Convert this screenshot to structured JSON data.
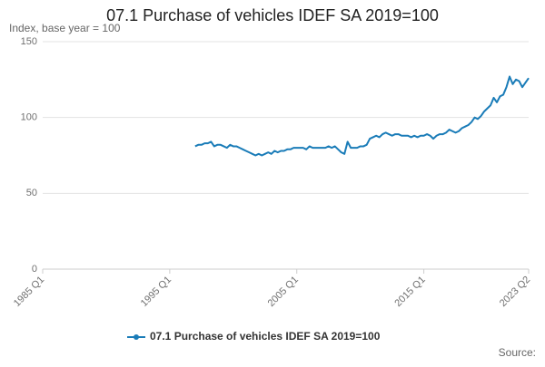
{
  "chart_data": {
    "type": "line",
    "title": "07.1 Purchase of vehicles IDEF SA 2019=100",
    "subtitle": "Index, base year = 100",
    "source": "Source:",
    "categories": [
      "1985 Q1",
      null,
      null,
      null,
      null,
      null,
      null,
      null,
      null,
      null,
      null,
      null,
      null,
      null,
      null,
      null,
      null,
      null,
      null,
      null,
      null,
      null,
      null,
      null,
      null,
      null,
      null,
      null,
      null,
      null,
      null,
      null,
      null,
      null,
      null,
      null,
      null,
      null,
      null,
      null,
      "1995 Q1",
      null,
      null,
      null,
      null,
      null,
      null,
      null,
      null,
      null,
      null,
      null,
      null,
      null,
      null,
      null,
      null,
      null,
      null,
      null,
      null,
      null,
      null,
      null,
      null,
      null,
      null,
      null,
      null,
      null,
      null,
      null,
      null,
      null,
      null,
      null,
      null,
      null,
      null,
      null,
      "2005 Q1",
      null,
      null,
      null,
      null,
      null,
      null,
      null,
      null,
      null,
      null,
      null,
      null,
      null,
      null,
      null,
      null,
      null,
      null,
      null,
      null,
      null,
      null,
      null,
      null,
      null,
      null,
      null,
      null,
      null,
      null,
      null,
      null,
      null,
      null,
      null,
      null,
      null,
      null,
      null,
      "2015 Q1",
      null,
      null,
      null,
      null,
      null,
      null,
      null,
      null,
      null,
      null,
      null,
      null,
      null,
      null,
      null,
      null,
      null,
      null,
      null,
      null,
      null,
      null,
      null,
      null,
      null,
      null,
      null,
      null,
      null,
      null,
      null,
      null,
      "2023 Q2"
    ],
    "series": [
      {
        "name": "07.1 Purchase of vehicles IDEF SA 2019=100",
        "color": "#1a7cb8",
        "values": [
          null,
          null,
          null,
          null,
          null,
          null,
          null,
          null,
          null,
          null,
          null,
          null,
          null,
          null,
          null,
          null,
          null,
          null,
          null,
          null,
          null,
          null,
          null,
          null,
          null,
          null,
          null,
          null,
          null,
          null,
          null,
          null,
          null,
          null,
          null,
          null,
          null,
          null,
          null,
          null,
          null,
          null,
          null,
          null,
          null,
          null,
          null,
          null,
          81,
          82,
          82,
          83,
          83,
          84,
          81,
          82,
          82,
          81,
          80,
          82,
          81,
          81,
          80,
          79,
          78,
          77,
          76,
          75,
          76,
          75,
          76,
          77,
          76,
          78,
          77,
          78,
          78,
          79,
          79,
          80,
          80,
          80,
          80,
          79,
          81,
          80,
          80,
          80,
          80,
          80,
          81,
          80,
          81,
          79,
          77,
          76,
          84,
          80,
          80,
          80,
          81,
          81,
          82,
          86,
          87,
          88,
          87,
          89,
          90,
          89,
          88,
          89,
          89,
          88,
          88,
          88,
          87,
          88,
          87,
          88,
          88,
          89,
          88,
          86,
          88,
          89,
          89,
          90,
          92,
          91,
          90,
          91,
          93,
          94,
          95,
          97,
          100,
          99,
          101,
          104,
          106,
          108,
          113,
          110,
          114,
          115,
          120,
          127,
          122,
          125,
          124,
          120,
          123,
          126
        ]
      }
    ],
    "ylim": [
      0,
      150
    ],
    "yticks": [
      0,
      50,
      100,
      150
    ],
    "grid": true
  }
}
